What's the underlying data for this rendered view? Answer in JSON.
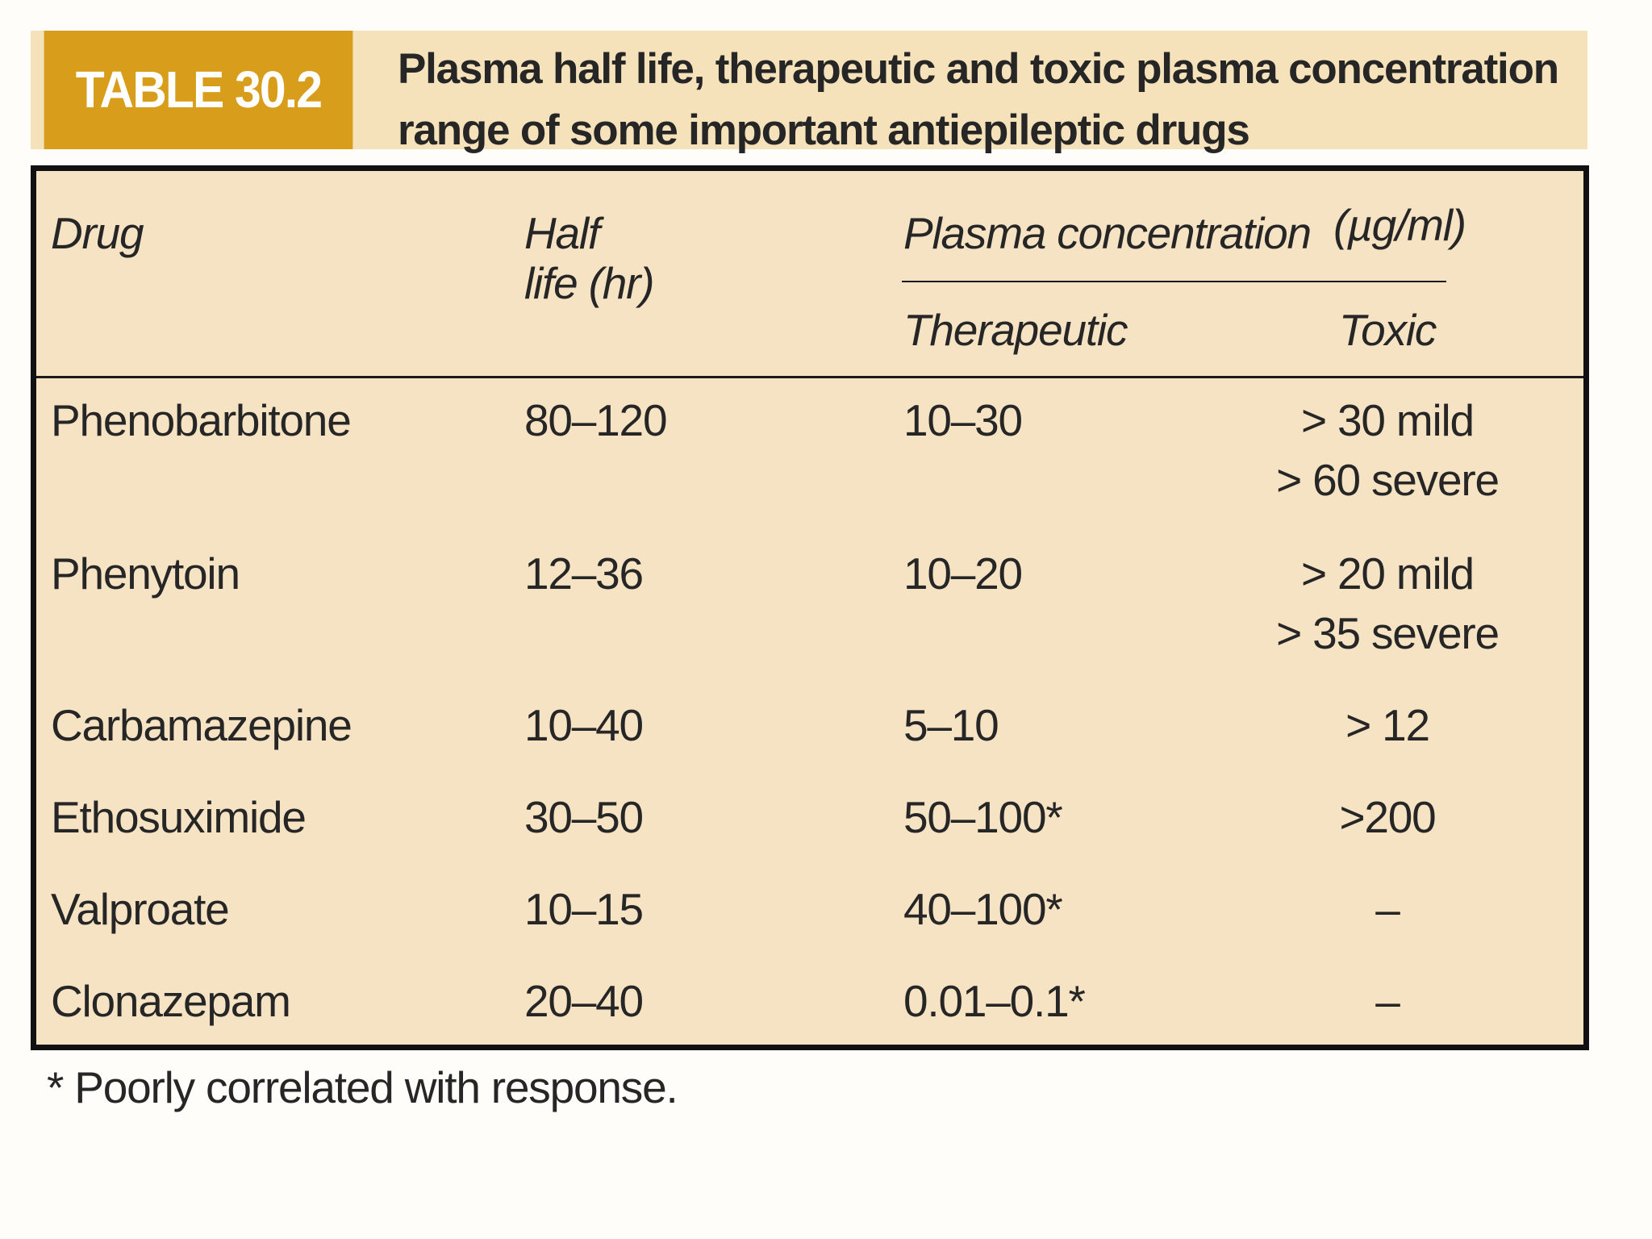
{
  "header": {
    "label": "TABLE 30.2",
    "title_line1": "Plasma half life, therapeutic and toxic plasma concentration",
    "title_line2": "range of some important antiepileptic drugs"
  },
  "columns": {
    "drug": "Drug",
    "half_life_line1": "Half",
    "half_life_line2": "life (hr)",
    "plasma": "Plasma concentration",
    "plasma_unit": "(µg/ml)",
    "therapeutic": "Therapeutic",
    "toxic": "Toxic"
  },
  "rows": [
    {
      "drug": "Phenobarbitone",
      "half_life": "80–120",
      "therapeutic": "10–30",
      "toxic_1": "> 30 mild",
      "toxic_2": "> 60 severe"
    },
    {
      "drug": "Phenytoin",
      "half_life": "12–36",
      "therapeutic": "10–20",
      "toxic_1": "> 20 mild",
      "toxic_2": "> 35 severe"
    },
    {
      "drug": "Carbamazepine",
      "half_life": "10–40",
      "therapeutic": "5–10",
      "toxic_1": "> 12"
    },
    {
      "drug": "Ethosuximide",
      "half_life": "30–50",
      "therapeutic": "50–100*",
      "toxic_1": ">200"
    },
    {
      "drug": "Valproate",
      "half_life": "10–15",
      "therapeutic": "40–100*",
      "toxic_1": "–"
    },
    {
      "drug": "Clonazepam",
      "half_life": "20–40",
      "therapeutic": "0.01–0.1*",
      "toxic_1": "–"
    }
  ],
  "footnote": "* Poorly correlated with response."
}
